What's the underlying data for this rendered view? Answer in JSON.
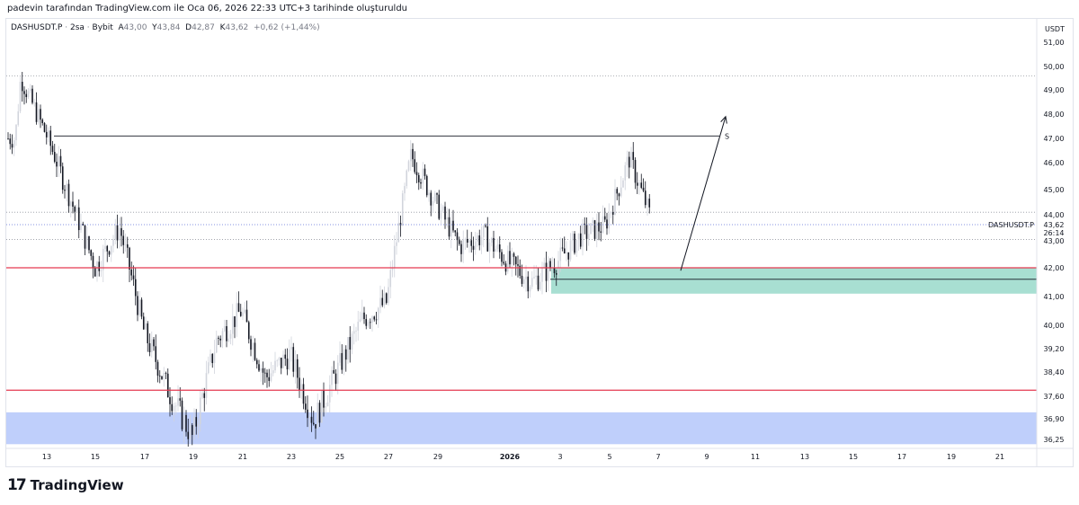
{
  "caption": "padevin tarafından TradingView.com ile Oca 06, 2026 22:33 UTC+3 tarihinde oluşturuldu",
  "legend": {
    "symbol": "DASHUSDT.P",
    "interval": "2sa",
    "exchange": "Bybit",
    "open_label": "A",
    "open": "43,00",
    "high_label": "Y",
    "high": "43,84",
    "low_label": "D",
    "low": "42,87",
    "close_label": "K",
    "close": "43,62",
    "change": "+0,62 (+1,44%)"
  },
  "footer": {
    "brand": "TradingView"
  },
  "colors": {
    "up": "#d1d4dc",
    "down": "#131722",
    "support_line": "#e53950",
    "green_zone": "#9fdccd",
    "blue_zone": "#bcccfb",
    "price_line": "#5f6fd8"
  },
  "chart_data": {
    "type": "candlestick",
    "currency_label": "USDT",
    "y_ticks": [
      "51,00",
      "50,00",
      "49,00",
      "48,00",
      "47,00",
      "46,00",
      "45,00",
      "44,00",
      "43,00",
      "42,00",
      "41,00",
      "40,00",
      "39,20",
      "38,40",
      "37,60",
      "36,90",
      "36,25"
    ],
    "ylim": [
      36.0,
      51.5
    ],
    "x_ticks": [
      "13",
      "15",
      "17",
      "19",
      "21",
      "23",
      "25",
      "27",
      "29",
      "2026",
      "3",
      "5",
      "7",
      "9",
      "11",
      "13",
      "15",
      "17",
      "19",
      "21"
    ],
    "last_price": {
      "label": "DASHUSDT.P",
      "value": "43,62",
      "countdown": "26:14"
    },
    "horizontal_lines": [
      {
        "name": "resistance",
        "y": 47.1,
        "label": "S"
      },
      {
        "name": "support-upper",
        "y": 42.0
      },
      {
        "name": "support-lower",
        "y": 37.8
      }
    ],
    "dotted_levels": [
      49.6,
      44.1,
      43.05
    ],
    "zones": [
      {
        "name": "demand-zone",
        "from": 41.1,
        "to": 42.0,
        "start_date": "2026-01-03"
      },
      {
        "name": "low-zone",
        "from": 36.1,
        "to": 37.1,
        "start_date": "2025-12-12"
      }
    ],
    "arrow": {
      "from_date": "2026-01-07",
      "from_y": 41.9,
      "to_date": "2026-01-09",
      "to_y": 47.9
    },
    "anchor_points": [
      {
        "date": "2025-12-12",
        "price": 47.0
      },
      {
        "date": "2025-12-12",
        "price": 49.5
      },
      {
        "date": "2025-12-13",
        "price": 47.1
      },
      {
        "date": "2025-12-15",
        "price": 42.0
      },
      {
        "date": "2025-12-16",
        "price": 43.5
      },
      {
        "date": "2025-12-17",
        "price": 39.8
      },
      {
        "date": "2025-12-18",
        "price": 37.8
      },
      {
        "date": "2025-12-19",
        "price": 36.3
      },
      {
        "date": "2025-12-20",
        "price": 39.5
      },
      {
        "date": "2025-12-21",
        "price": 40.5
      },
      {
        "date": "2025-12-22",
        "price": 38.2
      },
      {
        "date": "2025-12-23",
        "price": 39.0
      },
      {
        "date": "2025-12-24",
        "price": 36.8
      },
      {
        "date": "2025-12-25",
        "price": 38.5
      },
      {
        "date": "2025-12-26",
        "price": 40.2
      },
      {
        "date": "2025-12-27",
        "price": 40.8
      },
      {
        "date": "2025-12-28",
        "price": 46.3
      },
      {
        "date": "2025-12-29",
        "price": 44.5
      },
      {
        "date": "2025-12-30",
        "price": 42.8
      },
      {
        "date": "2025-12-31",
        "price": 43.2
      },
      {
        "date": "2026-01-01",
        "price": 42.2
      },
      {
        "date": "2026-01-02",
        "price": 41.5
      },
      {
        "date": "2026-01-03",
        "price": 42.2
      },
      {
        "date": "2026-01-04",
        "price": 43.2
      },
      {
        "date": "2026-01-05",
        "price": 43.6
      },
      {
        "date": "2026-01-06",
        "price": 46.2
      },
      {
        "date": "2026-01-07",
        "price": 43.6
      }
    ]
  }
}
